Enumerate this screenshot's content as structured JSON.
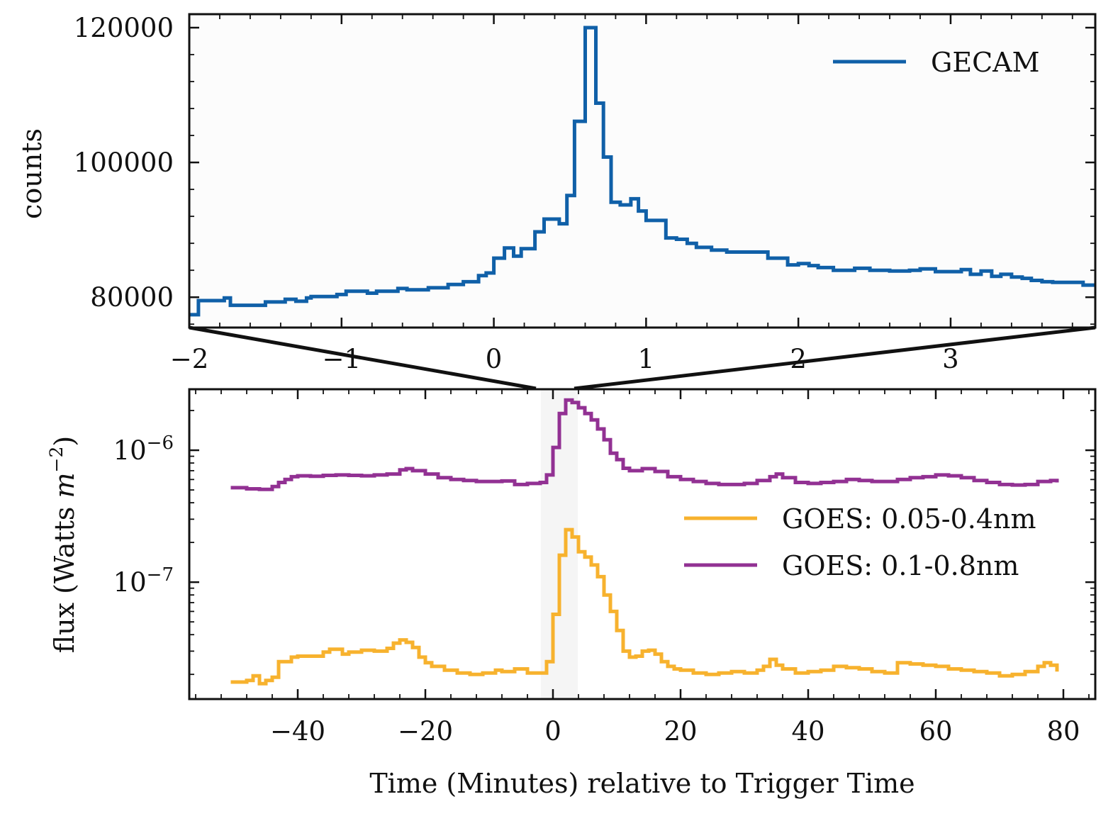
{
  "chart_data": [
    {
      "type": "line",
      "step": true,
      "xlim": [
        -2,
        3.95
      ],
      "ylim": [
        75500,
        122000
      ],
      "ylabel": "counts",
      "legend_position": "upper right",
      "x_ticks": [
        "−2",
        "−1",
        "0",
        "1",
        "2",
        "3"
      ],
      "y_ticks": [
        "80000",
        "100000",
        "120000"
      ],
      "series": [
        {
          "name": "GECAM",
          "color": "#1060a8",
          "x": [
            -2.0,
            -1.94,
            -1.77,
            -1.73,
            -1.5,
            -1.37,
            -1.3,
            -1.23,
            -1.2,
            -1.03,
            -0.97,
            -0.83,
            -0.77,
            -0.63,
            -0.57,
            -0.43,
            -0.3,
            -0.2,
            -0.1,
            -0.05,
            0.0,
            0.07,
            0.13,
            0.18,
            0.27,
            0.33,
            0.43,
            0.48,
            0.53,
            0.6,
            0.67,
            0.72,
            0.77,
            0.83,
            0.9,
            0.95,
            1.0,
            1.13,
            1.2,
            1.27,
            1.33,
            1.43,
            1.53,
            1.8,
            1.93,
            2.0,
            2.07,
            2.13,
            2.23,
            2.27,
            2.37,
            2.47,
            2.53,
            2.6,
            2.73,
            2.8,
            2.9,
            3.0,
            3.07,
            3.13,
            3.2,
            3.27,
            3.33,
            3.4,
            3.47,
            3.53,
            3.6,
            3.67,
            3.77,
            3.87,
            3.95
          ],
          "y": [
            77400,
            79500,
            79900,
            78800,
            79300,
            79700,
            79400,
            79900,
            80100,
            80400,
            80900,
            80600,
            80900,
            81300,
            81100,
            81400,
            81900,
            82300,
            83200,
            83600,
            85800,
            87300,
            86100,
            87200,
            89700,
            91600,
            90900,
            95100,
            106100,
            120000,
            108800,
            100800,
            94100,
            93700,
            94600,
            92800,
            91400,
            88800,
            88600,
            88000,
            87400,
            87000,
            86700,
            85800,
            84800,
            85000,
            84700,
            84400,
            84000,
            84000,
            84300,
            84000,
            84000,
            83900,
            84000,
            84200,
            83800,
            83800,
            84100,
            83400,
            83900,
            83100,
            83400,
            83000,
            82800,
            82500,
            82300,
            82200,
            82200,
            81800,
            81800
          ]
        }
      ]
    },
    {
      "type": "line",
      "step": true,
      "xlim": [
        -57,
        85
      ],
      "ylog": true,
      "ylim": [
        1.3e-08,
        2.9e-06
      ],
      "xlabel": "Time (Minutes) relative to Trigger Time",
      "ylabel": "flux (Watts m⁻²)",
      "ylabel_parts": [
        "flux (Watts ",
        "m",
        "−2",
        ")"
      ],
      "legend_position": "center right",
      "x_ticks": [
        "−40",
        "−20",
        "0",
        "20",
        "40",
        "60",
        "80"
      ],
      "y_ticks": [
        {
          "value": 1e-06,
          "base": "10",
          "exp": "−6"
        },
        {
          "value": 1e-07,
          "base": "10",
          "exp": "−7"
        }
      ],
      "highlight_span": [
        -1.9,
        3.9
      ],
      "series": [
        {
          "name": "GOES: 0.05-0.4nm",
          "color": "#f7b22e",
          "x": [
            -50.5,
            -48,
            -47,
            -46,
            -45,
            -44,
            -43,
            -41,
            -40,
            -36,
            -35,
            -33,
            -32,
            -30,
            -28,
            -26,
            -25,
            -24,
            -23,
            -22,
            -21,
            -20,
            -19,
            -17,
            -15,
            -13,
            -11,
            -9,
            -8,
            -6,
            -4,
            -2,
            -1,
            0,
            1,
            2,
            3,
            4,
            5,
            6,
            7,
            8,
            9,
            10,
            11,
            12,
            13,
            14,
            15,
            16,
            17,
            18,
            19,
            20,
            22,
            24,
            26,
            28,
            30,
            32,
            33,
            34,
            35,
            36,
            38,
            40,
            42,
            44,
            46,
            48,
            50,
            52,
            54,
            56,
            58,
            60,
            62,
            64,
            66,
            68,
            70,
            72,
            74,
            76,
            77,
            78,
            79
          ],
          "y": [
            1.75e-08,
            1.8e-08,
            1.95e-08,
            1.7e-08,
            1.8e-08,
            1.9e-08,
            2.5e-08,
            2.7e-08,
            2.75e-08,
            2.95e-08,
            3.1e-08,
            2.85e-08,
            2.95e-08,
            3.05e-08,
            3e-08,
            3.15e-08,
            3.45e-08,
            3.65e-08,
            3.5e-08,
            3.2e-08,
            2.7e-08,
            2.45e-08,
            2.3e-08,
            2.15e-08,
            2.05e-08,
            2e-08,
            2.05e-08,
            2.15e-08,
            2.1e-08,
            2.2e-08,
            2.05e-08,
            2.05e-08,
            2.5e-08,
            5.7e-08,
            1.6e-07,
            2.5e-07,
            2.2e-07,
            1.7e-07,
            1.55e-07,
            1.35e-07,
            1.1e-07,
            8e-08,
            6e-08,
            4.3e-08,
            3e-08,
            2.7e-08,
            2.75e-08,
            3e-08,
            3.05e-08,
            2.85e-08,
            2.5e-08,
            2.3e-08,
            2.2e-08,
            2.15e-08,
            2.05e-08,
            2e-08,
            2.05e-08,
            2.1e-08,
            2.05e-08,
            2.15e-08,
            2.3e-08,
            2.6e-08,
            2.35e-08,
            2.2e-08,
            2.05e-08,
            2.1e-08,
            2.15e-08,
            2.3e-08,
            2.25e-08,
            2.2e-08,
            2.1e-08,
            2.05e-08,
            2.45e-08,
            2.4e-08,
            2.35e-08,
            2.3e-08,
            2.2e-08,
            2.15e-08,
            2.1e-08,
            2.05e-08,
            1.95e-08,
            2e-08,
            2.1e-08,
            2.3e-08,
            2.45e-08,
            2.35e-08,
            2.1e-08
          ]
        },
        {
          "name": "GOES: 0.1-0.8nm",
          "color": "#923193",
          "x": [
            -50.5,
            -48,
            -46,
            -44,
            -43,
            -42,
            -41,
            -40,
            -38,
            -36,
            -34,
            -32,
            -30,
            -28,
            -26,
            -24,
            -23,
            -22,
            -20,
            -18,
            -16,
            -14,
            -12,
            -10,
            -8,
            -6,
            -4,
            -2,
            -1,
            0,
            1,
            2,
            3,
            4,
            5,
            6,
            7,
            8,
            9,
            10,
            11,
            12,
            14,
            16,
            18,
            20,
            22,
            24,
            26,
            28,
            30,
            32,
            34,
            35,
            36,
            38,
            40,
            42,
            44,
            46,
            48,
            50,
            52,
            54,
            56,
            58,
            60,
            62,
            64,
            66,
            68,
            70,
            72,
            74,
            76,
            78,
            79
          ],
          "y": [
            5.2e-07,
            5.1e-07,
            5.05e-07,
            5.3e-07,
            5.7e-07,
            6e-07,
            6.3e-07,
            6.4e-07,
            6.35e-07,
            6.45e-07,
            6.5e-07,
            6.45e-07,
            6.4e-07,
            6.5e-07,
            6.6e-07,
            7.1e-07,
            7.25e-07,
            7e-07,
            6.6e-07,
            6.2e-07,
            6e-07,
            5.9e-07,
            5.8e-07,
            5.8e-07,
            5.85e-07,
            5.5e-07,
            5.6e-07,
            5.7e-07,
            6.5e-07,
            1.05e-06,
            1.9e-06,
            2.4e-06,
            2.3e-06,
            2.1e-06,
            1.9e-06,
            1.7e-06,
            1.45e-06,
            1.2e-06,
            9.5e-07,
            8.5e-07,
            7.3e-07,
            7e-07,
            7.25e-07,
            6.9e-07,
            6.3e-07,
            6e-07,
            5.8e-07,
            5.6e-07,
            5.5e-07,
            5.5e-07,
            5.6e-07,
            5.9e-07,
            6.3e-07,
            6.6e-07,
            6.2e-07,
            5.7e-07,
            5.6e-07,
            5.7e-07,
            5.8e-07,
            6e-07,
            5.9e-07,
            5.8e-07,
            5.8e-07,
            6e-07,
            6.2e-07,
            6.3e-07,
            6.5e-07,
            6.4e-07,
            6.2e-07,
            5.9e-07,
            5.7e-07,
            5.5e-07,
            5.45e-07,
            5.5e-07,
            5.8e-07,
            5.9e-07,
            5.7e-07
          ]
        }
      ]
    }
  ]
}
